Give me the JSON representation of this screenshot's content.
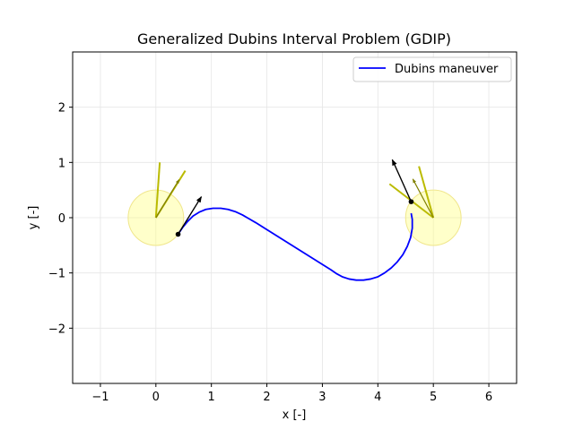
{
  "chart_data": {
    "type": "line",
    "title": "Generalized Dubins Interval Problem (GDIP)",
    "xlabel": "x [-]",
    "ylabel": "y [-]",
    "xlim": [
      -1.5,
      6.5
    ],
    "ylim": [
      -3,
      3
    ],
    "xticks": [
      -1,
      0,
      1,
      2,
      3,
      4,
      5,
      6
    ],
    "yticks": [
      -2,
      -1,
      0,
      1,
      2
    ],
    "grid": true,
    "legend_position": "top-right",
    "colors": {
      "path": "#0000ff",
      "region_fill": "#ffff66",
      "interval": "#bbbb00",
      "interval_arrow": "#808000",
      "vector": "#000000"
    },
    "series": [
      {
        "name": "Dubins maneuver",
        "x": [
          0.4,
          0.48,
          0.57,
          0.67,
          0.78,
          0.9,
          1.03,
          1.17,
          1.3,
          1.43,
          1.56,
          1.68,
          1.8,
          3.15,
          3.25,
          3.36,
          3.48,
          3.61,
          3.74,
          3.87,
          4.0,
          4.12,
          4.24,
          4.35,
          4.45,
          4.53,
          4.59,
          4.62,
          4.62,
          4.6
        ],
        "y": [
          -0.3,
          -0.18,
          -0.07,
          0.03,
          0.1,
          0.15,
          0.17,
          0.17,
          0.15,
          0.11,
          0.05,
          -0.02,
          -0.09,
          -0.94,
          -1.01,
          -1.07,
          -1.11,
          -1.13,
          -1.13,
          -1.11,
          -1.07,
          -1.0,
          -0.91,
          -0.8,
          -0.67,
          -0.52,
          -0.36,
          -0.19,
          -0.03,
          0.08
        ]
      }
    ],
    "regions": [
      {
        "x": 0,
        "y": 0,
        "radius": 0.5
      },
      {
        "x": 5,
        "y": 0,
        "radius": 0.5
      }
    ],
    "heading_intervals": [
      {
        "origin": [
          0,
          0
        ],
        "end1": [
          0.07,
          1.0
        ],
        "end2": [
          0.53,
          0.85
        ],
        "mid": [
          0.42,
          0.69
        ]
      },
      {
        "origin": [
          5,
          0
        ],
        "end1": [
          4.21,
          0.61
        ],
        "end2": [
          4.74,
          0.93
        ],
        "mid": [
          4.63,
          0.7
        ]
      }
    ],
    "heading_vectors": [
      {
        "start": [
          0.4,
          -0.3
        ],
        "end": [
          0.82,
          0.38
        ]
      },
      {
        "start": [
          4.6,
          0.29
        ],
        "end": [
          4.26,
          1.05
        ]
      }
    ],
    "endpoints": [
      {
        "x": 0.4,
        "y": -0.3
      },
      {
        "x": 4.6,
        "y": 0.29
      }
    ]
  }
}
